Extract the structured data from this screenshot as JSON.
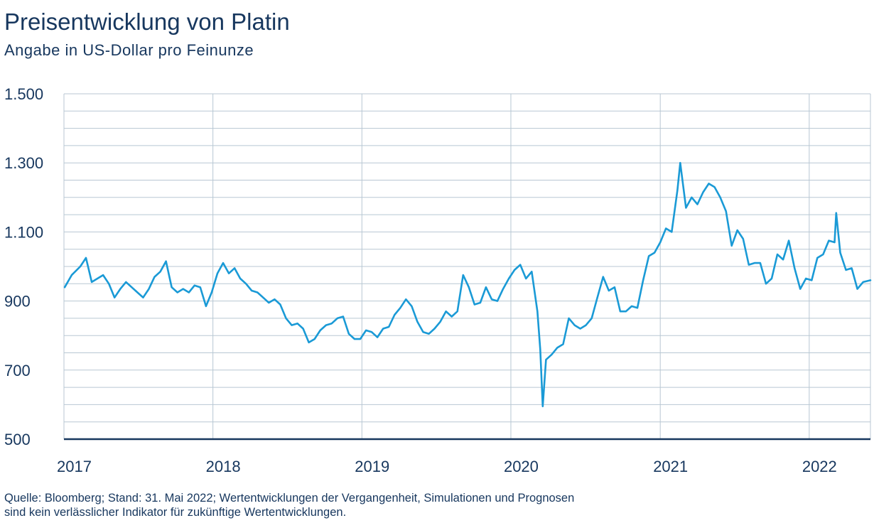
{
  "header": {
    "title": "Preisentwicklung von Platin",
    "subtitle": "Angabe in US-Dollar pro Feinunze"
  },
  "footer": {
    "note_line1": "Quelle: Bloomberg; Stand: 31. Mai 2022; Wertentwicklungen der Vergangenheit, Simulationen und Prognosen",
    "note_line2": "sind kein verlässlicher Indikator für zukünftige Wertentwicklungen."
  },
  "colors": {
    "line": "#1a9ad6",
    "grid": "#b8c7d3",
    "text": "#17375e",
    "axis": "#17375e"
  },
  "chart_data": {
    "type": "line",
    "title": "Preisentwicklung von Platin",
    "subtitle": "Angabe in US-Dollar pro Feinunze",
    "xlabel": "",
    "ylabel": "",
    "xlim": [
      "2017-01-01",
      "2022-05-31"
    ],
    "ylim": [
      500,
      1500
    ],
    "y_ticks": [
      {
        "value": 500,
        "label": "500"
      },
      {
        "value": 700,
        "label": "700"
      },
      {
        "value": 900,
        "label": "900"
      },
      {
        "value": 1100,
        "label": "1.100"
      },
      {
        "value": 1300,
        "label": "1.300"
      },
      {
        "value": 1500,
        "label": "1.500"
      }
    ],
    "x_ticks": [
      {
        "date": "2017-01-01",
        "label": "2017"
      },
      {
        "date": "2018-01-01",
        "label": "2018"
      },
      {
        "date": "2019-01-01",
        "label": "2019"
      },
      {
        "date": "2020-01-01",
        "label": "2020"
      },
      {
        "date": "2021-01-01",
        "label": "2021"
      },
      {
        "date": "2022-01-01",
        "label": "2022"
      }
    ],
    "grid": true,
    "series": [
      {
        "color": "#1a9ad6",
        "points": [
          [
            "2017-01-03",
            940
          ],
          [
            "2017-01-20",
            975
          ],
          [
            "2017-02-10",
            1000
          ],
          [
            "2017-02-24",
            1025
          ],
          [
            "2017-03-10",
            955
          ],
          [
            "2017-03-24",
            965
          ],
          [
            "2017-04-07",
            975
          ],
          [
            "2017-04-21",
            950
          ],
          [
            "2017-05-05",
            910
          ],
          [
            "2017-05-19",
            935
          ],
          [
            "2017-06-02",
            955
          ],
          [
            "2017-06-16",
            940
          ],
          [
            "2017-06-30",
            925
          ],
          [
            "2017-07-14",
            910
          ],
          [
            "2017-07-28",
            935
          ],
          [
            "2017-08-11",
            970
          ],
          [
            "2017-08-25",
            985
          ],
          [
            "2017-09-08",
            1015
          ],
          [
            "2017-09-22",
            940
          ],
          [
            "2017-10-06",
            925
          ],
          [
            "2017-10-20",
            935
          ],
          [
            "2017-11-03",
            925
          ],
          [
            "2017-11-17",
            945
          ],
          [
            "2017-12-01",
            940
          ],
          [
            "2017-12-15",
            885
          ],
          [
            "2017-12-29",
            925
          ],
          [
            "2018-01-12",
            980
          ],
          [
            "2018-01-26",
            1010
          ],
          [
            "2018-02-09",
            980
          ],
          [
            "2018-02-23",
            995
          ],
          [
            "2018-03-09",
            965
          ],
          [
            "2018-03-23",
            950
          ],
          [
            "2018-04-06",
            930
          ],
          [
            "2018-04-20",
            925
          ],
          [
            "2018-05-04",
            910
          ],
          [
            "2018-05-18",
            895
          ],
          [
            "2018-06-01",
            905
          ],
          [
            "2018-06-15",
            890
          ],
          [
            "2018-06-29",
            850
          ],
          [
            "2018-07-13",
            830
          ],
          [
            "2018-07-27",
            835
          ],
          [
            "2018-08-10",
            820
          ],
          [
            "2018-08-24",
            780
          ],
          [
            "2018-09-07",
            790
          ],
          [
            "2018-09-21",
            815
          ],
          [
            "2018-10-05",
            830
          ],
          [
            "2018-10-19",
            835
          ],
          [
            "2018-11-02",
            850
          ],
          [
            "2018-11-16",
            855
          ],
          [
            "2018-11-30",
            805
          ],
          [
            "2018-12-14",
            790
          ],
          [
            "2018-12-28",
            790
          ],
          [
            "2019-01-11",
            815
          ],
          [
            "2019-01-25",
            810
          ],
          [
            "2019-02-08",
            795
          ],
          [
            "2019-02-22",
            820
          ],
          [
            "2019-03-08",
            825
          ],
          [
            "2019-03-22",
            860
          ],
          [
            "2019-04-05",
            880
          ],
          [
            "2019-04-19",
            905
          ],
          [
            "2019-05-03",
            885
          ],
          [
            "2019-05-17",
            840
          ],
          [
            "2019-05-31",
            810
          ],
          [
            "2019-06-14",
            805
          ],
          [
            "2019-06-28",
            820
          ],
          [
            "2019-07-12",
            840
          ],
          [
            "2019-07-26",
            870
          ],
          [
            "2019-08-09",
            855
          ],
          [
            "2019-08-23",
            870
          ],
          [
            "2019-09-06",
            975
          ],
          [
            "2019-09-20",
            940
          ],
          [
            "2019-10-04",
            890
          ],
          [
            "2019-10-18",
            895
          ],
          [
            "2019-11-01",
            940
          ],
          [
            "2019-11-15",
            905
          ],
          [
            "2019-11-29",
            900
          ],
          [
            "2019-12-13",
            935
          ],
          [
            "2019-12-27",
            965
          ],
          [
            "2020-01-10",
            990
          ],
          [
            "2020-01-24",
            1005
          ],
          [
            "2020-02-07",
            965
          ],
          [
            "2020-02-21",
            985
          ],
          [
            "2020-03-06",
            870
          ],
          [
            "2020-03-13",
            760
          ],
          [
            "2020-03-19",
            595
          ],
          [
            "2020-03-27",
            730
          ],
          [
            "2020-04-10",
            745
          ],
          [
            "2020-04-24",
            765
          ],
          [
            "2020-05-08",
            775
          ],
          [
            "2020-05-22",
            850
          ],
          [
            "2020-06-05",
            830
          ],
          [
            "2020-06-19",
            820
          ],
          [
            "2020-07-03",
            830
          ],
          [
            "2020-07-17",
            850
          ],
          [
            "2020-07-31",
            910
          ],
          [
            "2020-08-14",
            970
          ],
          [
            "2020-08-28",
            930
          ],
          [
            "2020-09-11",
            940
          ],
          [
            "2020-09-25",
            870
          ],
          [
            "2020-10-09",
            870
          ],
          [
            "2020-10-23",
            885
          ],
          [
            "2020-11-06",
            880
          ],
          [
            "2020-11-20",
            960
          ],
          [
            "2020-12-04",
            1030
          ],
          [
            "2020-12-18",
            1040
          ],
          [
            "2021-01-01",
            1070
          ],
          [
            "2021-01-15",
            1110
          ],
          [
            "2021-01-29",
            1100
          ],
          [
            "2021-02-12",
            1220
          ],
          [
            "2021-02-19",
            1300
          ],
          [
            "2021-03-05",
            1170
          ],
          [
            "2021-03-19",
            1200
          ],
          [
            "2021-04-02",
            1180
          ],
          [
            "2021-04-16",
            1215
          ],
          [
            "2021-04-30",
            1240
          ],
          [
            "2021-05-14",
            1230
          ],
          [
            "2021-05-28",
            1200
          ],
          [
            "2021-06-11",
            1160
          ],
          [
            "2021-06-25",
            1060
          ],
          [
            "2021-07-09",
            1105
          ],
          [
            "2021-07-23",
            1080
          ],
          [
            "2021-08-06",
            1005
          ],
          [
            "2021-08-20",
            1010
          ],
          [
            "2021-09-03",
            1010
          ],
          [
            "2021-09-17",
            950
          ],
          [
            "2021-10-01",
            965
          ],
          [
            "2021-10-15",
            1035
          ],
          [
            "2021-10-29",
            1020
          ],
          [
            "2021-11-12",
            1075
          ],
          [
            "2021-11-26",
            995
          ],
          [
            "2021-12-10",
            935
          ],
          [
            "2021-12-24",
            965
          ],
          [
            "2022-01-07",
            960
          ],
          [
            "2022-01-21",
            1025
          ],
          [
            "2022-02-04",
            1035
          ],
          [
            "2022-02-18",
            1075
          ],
          [
            "2022-03-04",
            1070
          ],
          [
            "2022-03-08",
            1155
          ],
          [
            "2022-03-18",
            1040
          ],
          [
            "2022-04-01",
            990
          ],
          [
            "2022-04-15",
            995
          ],
          [
            "2022-04-29",
            935
          ],
          [
            "2022-05-13",
            955
          ],
          [
            "2022-05-31",
            960
          ]
        ]
      }
    ]
  }
}
